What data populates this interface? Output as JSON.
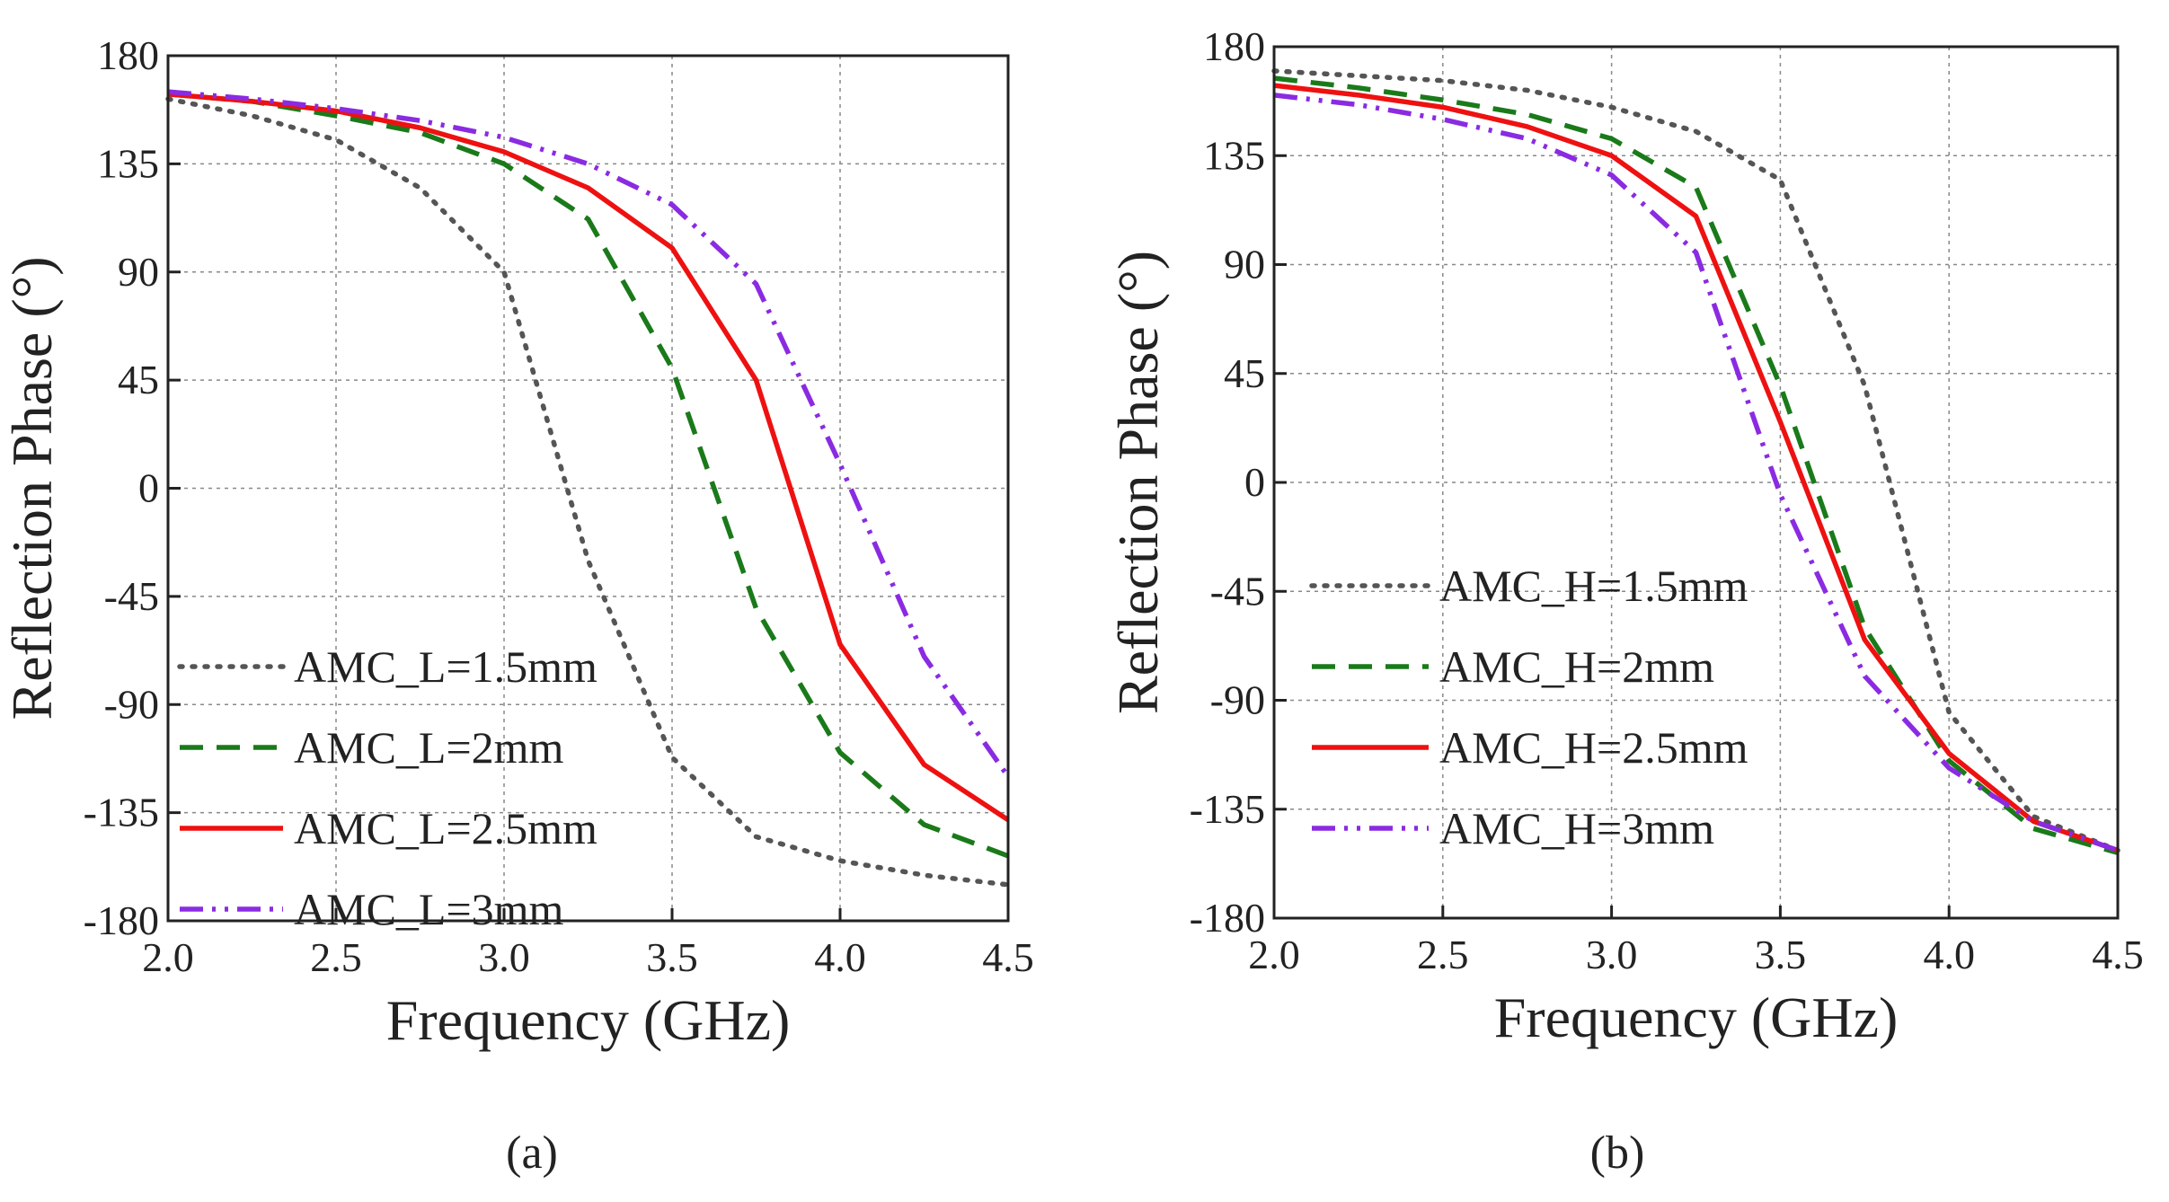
{
  "chart_data": [
    {
      "type": "line",
      "panel_label": "(a)",
      "xlabel": "Frequency (GHz)",
      "ylabel": "Reflection Phase (°)",
      "xlim": [
        2.0,
        4.5
      ],
      "ylim": [
        -180,
        180
      ],
      "x_ticks": [
        "2.0",
        "2.5",
        "3.0",
        "3.5",
        "4.0",
        "4.5"
      ],
      "y_ticks": [
        "180",
        "135",
        "90",
        "45",
        "0",
        "-45",
        "-90",
        "-135",
        "-180"
      ],
      "grid": true,
      "legend_position": "bottom-left",
      "x": [
        2.0,
        2.25,
        2.5,
        2.75,
        3.0,
        3.25,
        3.5,
        3.75,
        4.0,
        4.25,
        4.5
      ],
      "series": [
        {
          "name": "AMC_L=1.5mm",
          "color": "#555555",
          "style": "dotted",
          "values": [
            162,
            155,
            145,
            125,
            90,
            -30,
            -112,
            -145,
            -155,
            -161,
            -165
          ]
        },
        {
          "name": "AMC_L=2mm",
          "color": "#1a7a1a",
          "style": "dashed",
          "values": [
            164,
            161,
            155,
            148,
            135,
            112,
            50,
            -50,
            -110,
            -140,
            -153
          ]
        },
        {
          "name": "AMC_L=2.5mm",
          "color": "#ee1111",
          "style": "solid",
          "values": [
            164,
            161,
            157,
            150,
            140,
            125,
            100,
            45,
            -65,
            -115,
            -138
          ]
        },
        {
          "name": "AMC_L=3mm",
          "color": "#8a2be2",
          "style": "dashdotdot",
          "values": [
            165,
            162,
            158,
            153,
            146,
            135,
            118,
            85,
            10,
            -70,
            -120
          ]
        }
      ]
    },
    {
      "type": "line",
      "panel_label": "(b)",
      "xlabel": "Frequency (GHz)",
      "ylabel": "Reflection Phase (°)",
      "xlim": [
        2.0,
        4.5
      ],
      "ylim": [
        -180,
        180
      ],
      "x_ticks": [
        "2.0",
        "2.5",
        "3.0",
        "3.5",
        "4.0",
        "4.5"
      ],
      "y_ticks": [
        "180",
        "135",
        "90",
        "45",
        "0",
        "-45",
        "-90",
        "-135",
        "-180"
      ],
      "grid": true,
      "legend_position": "bottom-left",
      "x": [
        2.0,
        2.25,
        2.5,
        2.75,
        3.0,
        3.25,
        3.5,
        3.75,
        4.0,
        4.25,
        4.5
      ],
      "series": [
        {
          "name": "AMC_H=1.5mm",
          "color": "#555555",
          "style": "dotted",
          "values": [
            170,
            168,
            166,
            162,
            155,
            145,
            125,
            40,
            -95,
            -138,
            -152
          ]
        },
        {
          "name": "AMC_H=2mm",
          "color": "#1a7a1a",
          "style": "dashed",
          "values": [
            167,
            163,
            158,
            152,
            142,
            122,
            40,
            -60,
            -115,
            -143,
            -153
          ]
        },
        {
          "name": "AMC_H=2.5mm",
          "color": "#ee1111",
          "style": "solid",
          "values": [
            164,
            160,
            155,
            147,
            135,
            110,
            25,
            -65,
            -112,
            -140,
            -152
          ]
        },
        {
          "name": "AMC_H=3mm",
          "color": "#8a2be2",
          "style": "dashdotdot",
          "values": [
            160,
            156,
            150,
            142,
            127,
            95,
            -5,
            -80,
            -118,
            -140,
            -152
          ]
        }
      ]
    }
  ]
}
